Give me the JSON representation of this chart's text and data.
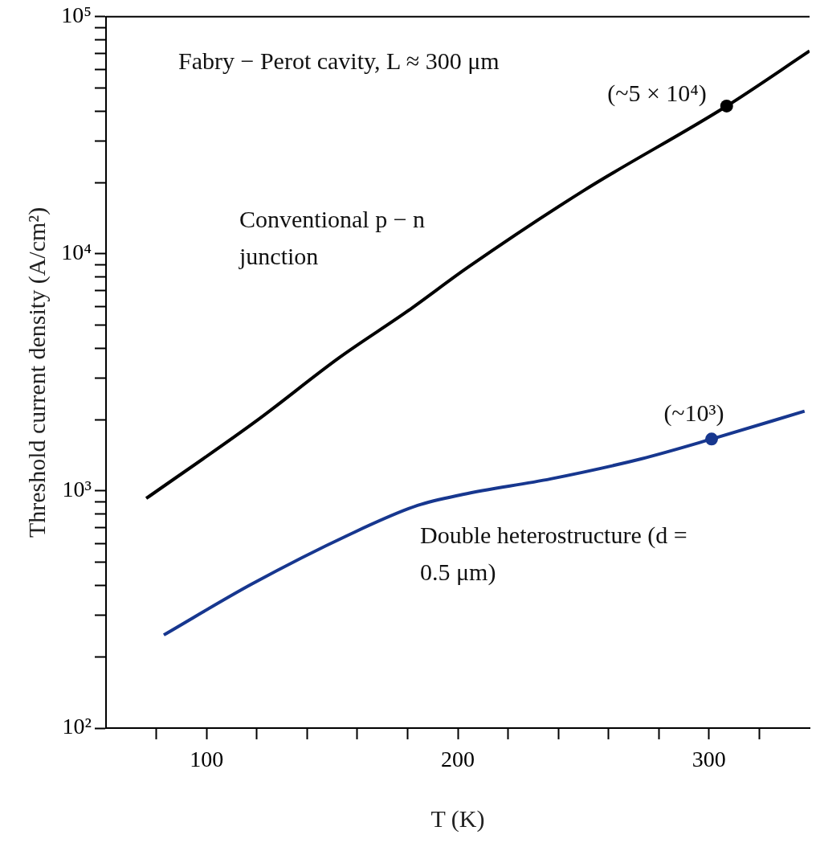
{
  "chart_data": {
    "type": "line",
    "xlabel": "T (K)",
    "ylabel": "Threshold current density (A/cm²)",
    "log": "y",
    "xlim": [
      60,
      340
    ],
    "xticks": [
      {
        "value": 80,
        "label": null
      },
      100,
      {
        "value": 120,
        "label": null
      },
      {
        "value": 140,
        "label": null
      },
      {
        "value": 160,
        "label": null
      },
      {
        "value": 180,
        "label": null
      },
      200,
      {
        "value": 220,
        "label": null
      },
      {
        "value": 240,
        "label": null
      },
      {
        "value": 260,
        "label": null
      },
      {
        "value": 280,
        "label": null
      },
      300,
      {
        "value": 320,
        "label": null
      }
    ],
    "ylim": [
      100,
      100000
    ],
    "yticks": [
      {
        "value": 100,
        "label": "10²"
      },
      {
        "value": 200,
        "label": null
      },
      {
        "value": 300,
        "label": null
      },
      {
        "value": 400,
        "label": null
      },
      {
        "value": 500,
        "label": null
      },
      {
        "value": 600,
        "label": null
      },
      {
        "value": 700,
        "label": null
      },
      {
        "value": 800,
        "label": null
      },
      {
        "value": 900,
        "label": null
      },
      {
        "value": 1000,
        "label": "10³"
      },
      {
        "value": 2000,
        "label": null
      },
      {
        "value": 3000,
        "label": null
      },
      {
        "value": 4000,
        "label": null
      },
      {
        "value": 5000,
        "label": null
      },
      {
        "value": 6000,
        "label": null
      },
      {
        "value": 7000,
        "label": null
      },
      {
        "value": 8000,
        "label": null
      },
      {
        "value": 9000,
        "label": null
      },
      {
        "value": 10000,
        "label": "10⁴"
      },
      {
        "value": 20000,
        "label": null
      },
      {
        "value": 30000,
        "label": null
      },
      {
        "value": 40000,
        "label": null
      },
      {
        "value": 50000,
        "label": null
      },
      {
        "value": 60000,
        "label": null
      },
      {
        "value": 70000,
        "label": null
      },
      {
        "value": 80000,
        "label": null
      },
      {
        "value": 90000,
        "label": null
      },
      {
        "value": 100000,
        "label": "10⁵"
      }
    ],
    "series": [
      {
        "name": "Conventional p − n junction",
        "color": "#000000",
        "x": [
          76,
          120,
          153,
          180,
          204,
          250,
          307,
          340
        ],
        "values": [
          930,
          1980,
          3660,
          5730,
          8770,
          18450,
          42000,
          71700
        ]
      },
      {
        "name": "Double heterostructure (d = 0.5 μm)",
        "color": "#17378f",
        "x": [
          83,
          118,
          157,
          184,
          202,
          237,
          273,
          301,
          338
        ],
        "values": [
          247,
          405,
          656,
          869,
          967,
          1125,
          1366,
          1655,
          2170
        ]
      },
      {
        "type": "scatter",
        "color": "#000000",
        "x": [
          307
        ],
        "values": [
          42000
        ]
      },
      {
        "type": "scatter",
        "color": "#17378f",
        "x": [
          301
        ],
        "values": [
          1655
        ]
      }
    ],
    "annotations": [
      "Fabry − Perot cavity, L ≈ 300 μm",
      {
        "text": "(~5 × 10⁴)",
        "x": 307,
        "y": 42000
      },
      {
        "text": "(~10³)",
        "x": 301,
        "y": 1655
      }
    ]
  }
}
